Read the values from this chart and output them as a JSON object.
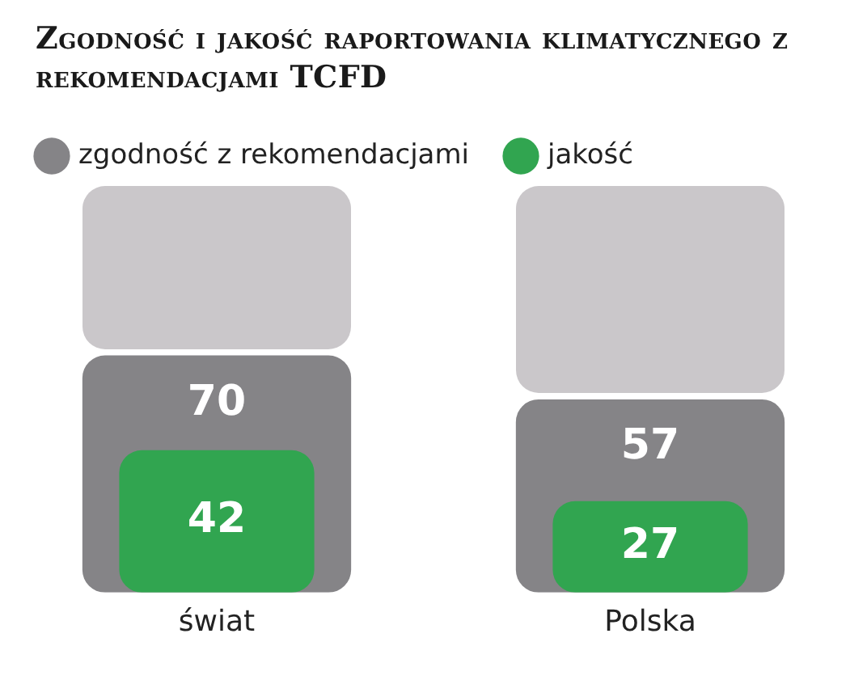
{
  "chart_data": {
    "type": "bar",
    "title": "Zgodność i jakość raportowania klimatycznego z rekomendacjami TCFD",
    "categories": [
      "świat",
      "Polska"
    ],
    "series": [
      {
        "name": "zgodność z rekomendacjami",
        "color": "#858487",
        "values": [
          70,
          57
        ]
      },
      {
        "name": "jakość",
        "color": "#31a550",
        "values": [
          42,
          27
        ]
      }
    ],
    "data_labels": true,
    "legend": "top left",
    "grid": false
  }
}
